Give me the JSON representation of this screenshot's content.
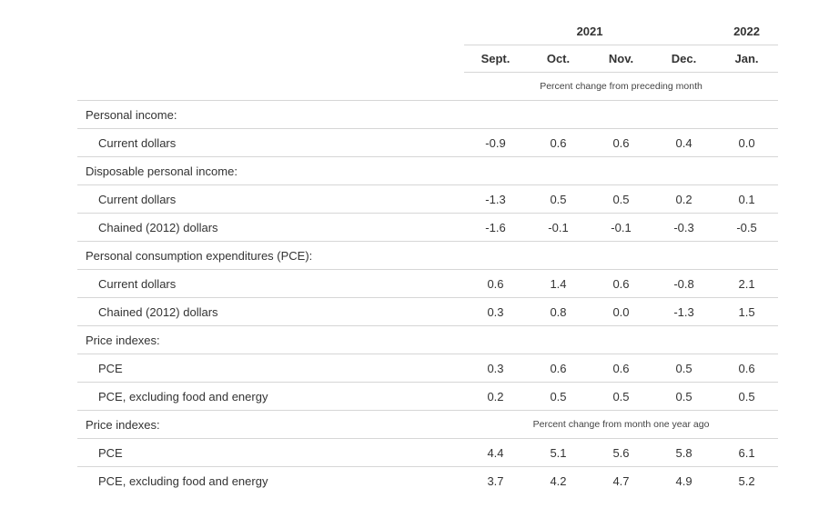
{
  "header": {
    "years": [
      {
        "label": "2021",
        "span": 4
      },
      {
        "label": "2022",
        "span": 1
      }
    ],
    "months": [
      "Sept.",
      "Oct.",
      "Nov.",
      "Dec.",
      "Jan."
    ],
    "unit_note": "Percent change from preceding month"
  },
  "rows": [
    {
      "kind": "section",
      "label": "Personal income:"
    },
    {
      "kind": "data",
      "label": "Current dollars",
      "values": [
        "-0.9",
        "0.6",
        "0.6",
        "0.4",
        "0.0"
      ]
    },
    {
      "kind": "section",
      "label": "Disposable personal income:"
    },
    {
      "kind": "data",
      "label": "Current dollars",
      "values": [
        "-1.3",
        "0.5",
        "0.5",
        "0.2",
        "0.1"
      ]
    },
    {
      "kind": "data",
      "label": "Chained (2012) dollars",
      "values": [
        "-1.6",
        "-0.1",
        "-0.1",
        "-0.3",
        "-0.5"
      ]
    },
    {
      "kind": "section",
      "label": "Personal consumption expenditures (PCE):"
    },
    {
      "kind": "data",
      "label": "Current dollars",
      "values": [
        "0.6",
        "1.4",
        "0.6",
        "-0.8",
        "2.1"
      ]
    },
    {
      "kind": "data",
      "label": "Chained (2012) dollars",
      "values": [
        "0.3",
        "0.8",
        "0.0",
        "-1.3",
        "1.5"
      ]
    },
    {
      "kind": "section",
      "label": "Price indexes:"
    },
    {
      "kind": "data",
      "label": "PCE",
      "values": [
        "0.3",
        "0.6",
        "0.6",
        "0.5",
        "0.6"
      ]
    },
    {
      "kind": "data",
      "label": "PCE, excluding food and energy",
      "values": [
        "0.2",
        "0.5",
        "0.5",
        "0.5",
        "0.5"
      ]
    },
    {
      "kind": "section-note",
      "label": "Price indexes:",
      "note": "Percent change from month one year ago"
    },
    {
      "kind": "data",
      "label": "PCE",
      "values": [
        "4.4",
        "5.1",
        "5.6",
        "5.8",
        "6.1"
      ]
    },
    {
      "kind": "data",
      "label": "PCE, excluding food and energy",
      "values": [
        "3.7",
        "4.2",
        "4.7",
        "4.9",
        "5.2"
      ]
    }
  ]
}
